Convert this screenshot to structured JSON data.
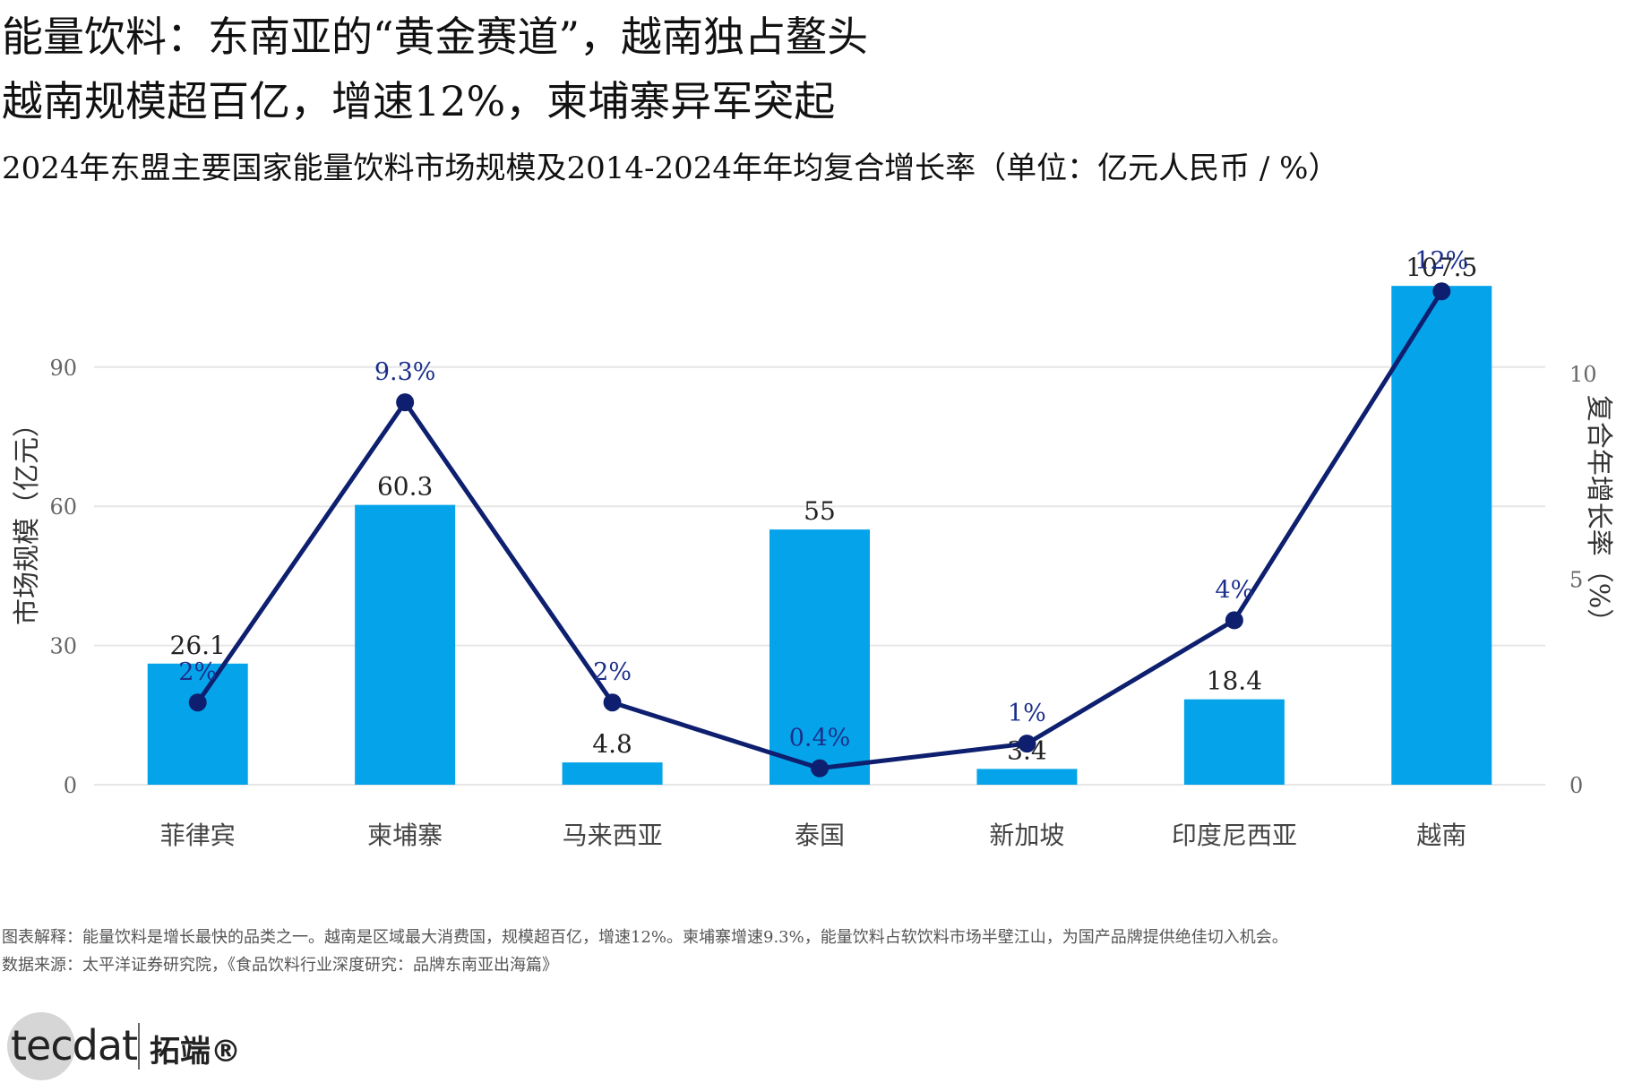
{
  "header": {
    "title_line1": "能量饮料：东南亚的“黄金赛道”，越南独占鳌头",
    "title_line2": "越南规模超百亿，增速12%，柬埔寨异军突起",
    "subtitle": "2024年东盟主要国家能量饮料市场规模及2014-2024年年均复合增长率（单位：亿元人民币 / %）"
  },
  "footer": {
    "note": "图表解释：能量饮料是增长最快的品类之一。越南是区域最大消费国，规模超百亿，增速12%。柬埔寨增速9.3%，能量饮料占软饮料市场半壁江山，为国产品牌提供绝佳切入机会。",
    "source": "数据来源：太平洋证券研究院，《食品饮料行业深度研究：品牌东南亚出海篇》"
  },
  "logo": {
    "text": "tecdat",
    "cn": "拓端®"
  },
  "colors": {
    "bar": "#05a4ea",
    "line": "#0d1f6e",
    "line_label": "#1b2f8a",
    "grid": "#e6e6e6"
  },
  "chart_data": {
    "type": "bar",
    "categories": [
      "菲律宾",
      "柬埔寨",
      "马来西亚",
      "泰国",
      "新加坡",
      "印度尼西亚",
      "越南"
    ],
    "series": [
      {
        "type": "bar",
        "axis": "left",
        "values": [
          26.1,
          60.3,
          4.8,
          55,
          3.4,
          18.4,
          107.5
        ],
        "labels": [
          "26.1",
          "60.3",
          "4.8",
          "55",
          "3.4",
          "18.4",
          "107.5"
        ]
      },
      {
        "type": "line",
        "axis": "right",
        "values": [
          2,
          9.3,
          2,
          0.4,
          1,
          4,
          12
        ],
        "labels": [
          "2%",
          "9.3%",
          "2%",
          "0.4%",
          "1%",
          "4%",
          "12%"
        ]
      }
    ],
    "ylabel": "市场规模（亿元）",
    "y2label": "复合年增长率（%）",
    "yticks": [
      0,
      30,
      60,
      90
    ],
    "y2ticks": [
      0,
      5,
      10
    ],
    "ylim": [
      0,
      107.5
    ],
    "y2lim": [
      0,
      12
    ],
    "grid": true
  }
}
